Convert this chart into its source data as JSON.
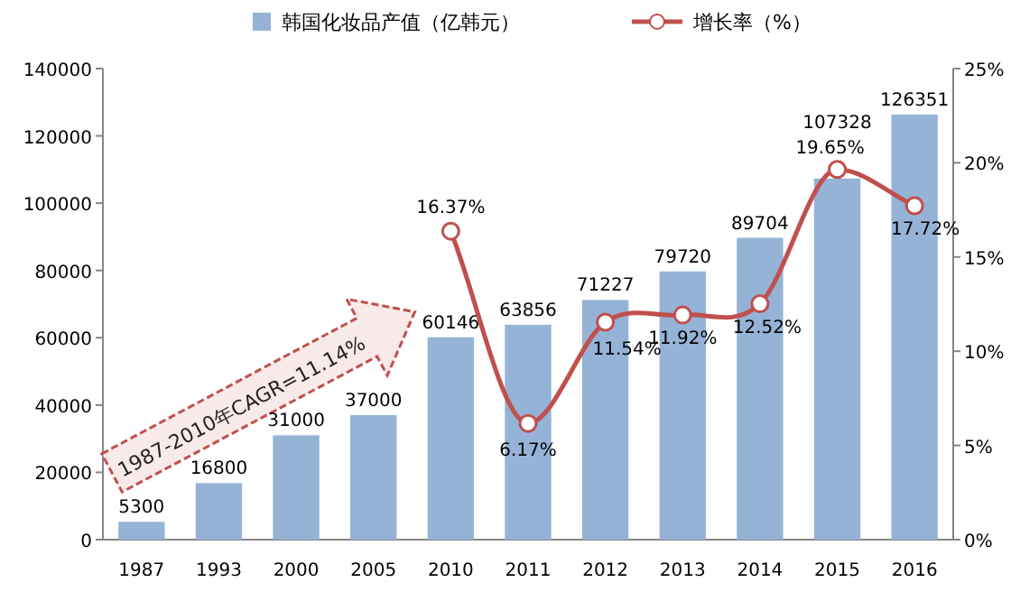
{
  "chart_data": {
    "type": "bar",
    "categories": [
      "1987",
      "1993",
      "2000",
      "2005",
      "2010",
      "2011",
      "2012",
      "2013",
      "2014",
      "2015",
      "2016"
    ],
    "series": [
      {
        "name": "韩国化妆品产值（亿韩元）",
        "color": "#95b3d7",
        "values": [
          5300,
          16800,
          31000,
          37000,
          60146,
          63856,
          71227,
          79720,
          89704,
          107328,
          126351
        ],
        "value_labels": [
          "5300",
          "16800",
          "31000",
          "37000",
          "60146",
          "63856",
          "71227",
          "79720",
          "89704",
          "107328",
          "126351"
        ]
      },
      {
        "name": "增长率（%）",
        "type": "line",
        "axis": "y2",
        "color": "#c0504d",
        "values": [
          null,
          null,
          null,
          null,
          16.37,
          6.17,
          11.54,
          11.92,
          12.52,
          19.65,
          17.72
        ],
        "value_labels": [
          null,
          null,
          null,
          null,
          "16.37%",
          "6.17%",
          "11.54%",
          "11.92%",
          "12.52%",
          "19.65%",
          "17.72%"
        ]
      }
    ],
    "ylim": [
      0,
      140000
    ],
    "yticks": [
      0,
      20000,
      40000,
      60000,
      80000,
      100000,
      120000,
      140000
    ],
    "y2lim": [
      0,
      25
    ],
    "y2ticks": [
      {
        "value": 0,
        "label": "0%"
      },
      {
        "value": 5,
        "label": "5%"
      },
      {
        "value": 10,
        "label": "10%"
      },
      {
        "value": 15,
        "label": "15%"
      },
      {
        "value": 20,
        "label": "20%"
      },
      {
        "value": 25,
        "label": "25%"
      }
    ],
    "marker": "circle",
    "legend": "top",
    "grid": false,
    "annotations": [
      "1987-2010年CAGR=11.14%"
    ]
  }
}
